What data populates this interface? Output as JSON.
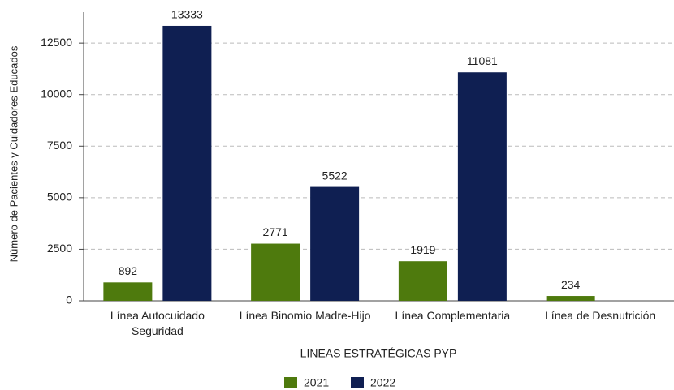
{
  "chart_data": {
    "type": "bar",
    "y_label": "Número de Pacientes y Cuidadores Educados",
    "x_label": "LINEAS ESTRATÉGICAS PYP",
    "categories": [
      "Línea Autocuidado Seguridad",
      "Línea Binomio Madre-Hijo",
      "Línea Complementaria",
      "Línea de Desnutrición"
    ],
    "series": [
      {
        "name": "2021",
        "color": "#4e7a0d",
        "values": [
          892,
          2771,
          1919,
          234
        ]
      },
      {
        "name": "2022",
        "color": "#0f1f52",
        "values": [
          13333,
          5522,
          11081,
          null
        ]
      }
    ],
    "ylim": [
      0,
      14000
    ],
    "yticks": [
      0,
      2500,
      5000,
      7500,
      10000,
      12500
    ],
    "grid": true
  }
}
